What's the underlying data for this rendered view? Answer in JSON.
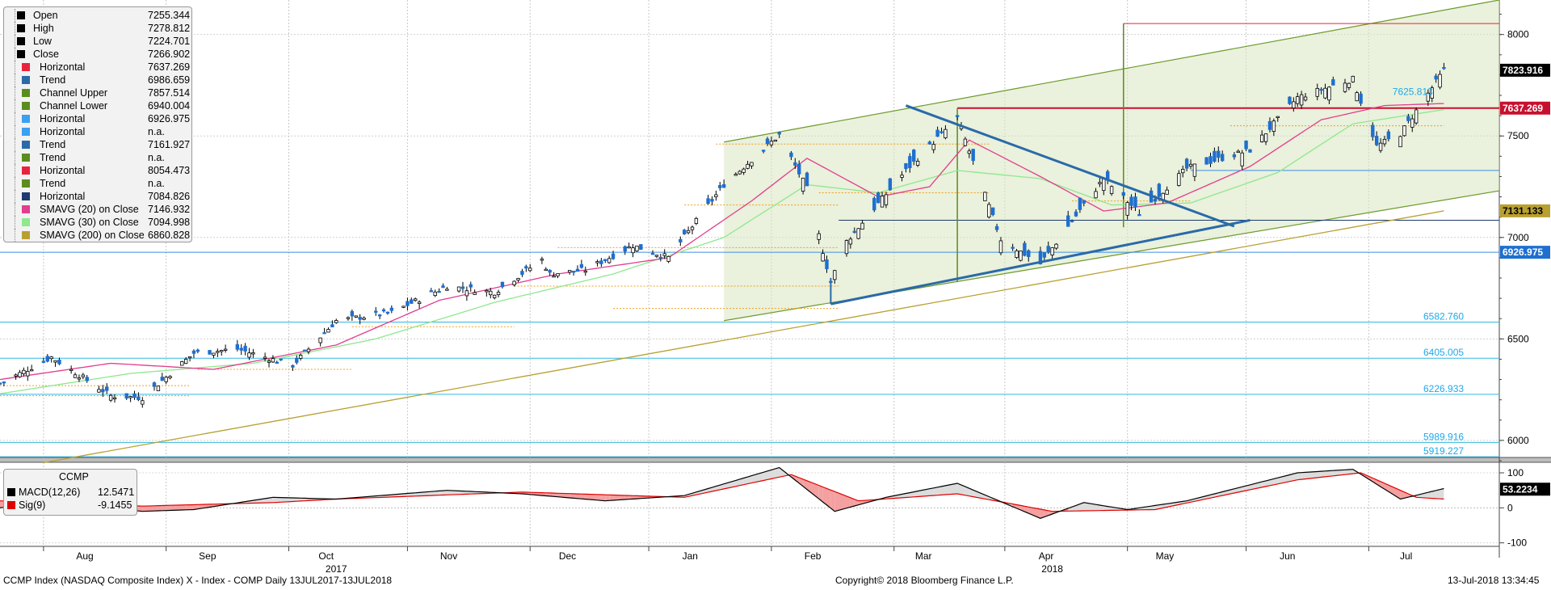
{
  "footer": {
    "left": "CCMP Index (NASDAQ Composite Index) X - Index - COMP  Daily 13JUL2017-13JUL2018",
    "center": "Copyright© 2018 Bloomberg Finance L.P.",
    "right": "13-Jul-2018 13:34:45"
  },
  "legend": [
    {
      "label": "Open",
      "value": "7255.344",
      "color": "#000000"
    },
    {
      "label": "High",
      "value": "7278.812",
      "color": "#000000"
    },
    {
      "label": "Low",
      "value": "7224.701",
      "color": "#000000"
    },
    {
      "label": "Close",
      "value": "7266.902",
      "color": "#000000"
    },
    {
      "label": "Horizontal",
      "value": "7637.269",
      "color": "#e8233c"
    },
    {
      "label": "Trend",
      "value": "6986.659",
      "color": "#2a6aa8"
    },
    {
      "label": "Channel Upper",
      "value": "7857.514",
      "color": "#5b8c1e"
    },
    {
      "label": "Channel Lower",
      "value": "6940.004",
      "color": "#5b8c1e"
    },
    {
      "label": "Horizontal",
      "value": "6926.975",
      "color": "#3aa0f0"
    },
    {
      "label": "Horizontal",
      "value": "n.a.",
      "color": "#3aa0f0"
    },
    {
      "label": "Trend",
      "value": "7161.927",
      "color": "#2a6aa8"
    },
    {
      "label": "Trend",
      "value": "n.a.",
      "color": "#5b8c1e"
    },
    {
      "label": "Horizontal",
      "value": "8054.473",
      "color": "#e8233c"
    },
    {
      "label": "Trend",
      "value": "n.a.",
      "color": "#5b8c1e"
    },
    {
      "label": "Horizontal",
      "value": "7084.826",
      "color": "#1e3a6e"
    },
    {
      "label": "SMAVG (20) on Close",
      "value": "7146.932",
      "color": "#e23d8e"
    },
    {
      "label": "SMAVG (30) on Close",
      "value": "7094.998",
      "color": "#8ee88e"
    },
    {
      "label": "SMAVG (200) on Close",
      "value": "6860.828",
      "color": "#b8a030"
    }
  ],
  "macd_legend": {
    "title": "CCMP",
    "rows": [
      {
        "label": "MACD(12,26)",
        "value": "12.5471",
        "color": "#000000"
      },
      {
        "label": "Sig(9)",
        "value": "-9.1455",
        "color": "#e00000"
      }
    ]
  },
  "chart_data": {
    "type": "candlestick",
    "price_axis": {
      "min": 5900,
      "max": 8170,
      "ticks": [
        "6000",
        "6500",
        "7000",
        "7500",
        "8000"
      ]
    },
    "macd_axis": {
      "min": -110,
      "max": 130,
      "ticks": [
        "100",
        "0",
        "-100"
      ]
    },
    "x_axis": {
      "months": [
        "Aug",
        "Sep",
        "Oct",
        "Nov",
        "Dec",
        "Jan",
        "Feb",
        "Mar",
        "Apr",
        "May",
        "Jun",
        "Jul"
      ],
      "years": [
        "2017",
        "2018"
      ]
    },
    "right_labels": [
      {
        "value": 7823.916,
        "text": "7823.916",
        "bg": "#000000",
        "fg": "#ffffff"
      },
      {
        "value": 7637.269,
        "text": "7637.269",
        "bg": "#c8102e",
        "fg": "#ffffff"
      },
      {
        "value": 7131.133,
        "text": "7131.133",
        "bg": "#b8a030",
        "fg": "#000000"
      },
      {
        "value": 6926.975,
        "text": "6926.975",
        "bg": "#1e6fd0",
        "fg": "#ffffff"
      },
      {
        "value": 53.2234,
        "text": "53.2234",
        "bg": "#000000",
        "fg": "#ffffff",
        "pane": "macd"
      }
    ],
    "horizontal_levels": [
      {
        "value": 6582.76,
        "text": "6582.760"
      },
      {
        "value": 6405.005,
        "text": "6405.005"
      },
      {
        "value": 6226.933,
        "text": "6226.933"
      },
      {
        "value": 5989.916,
        "text": "5989.916"
      },
      {
        "value": 5919.227,
        "text": "5919.227"
      }
    ],
    "inline_label": "7625.813",
    "ohlc_anchor": [
      [
        "2017-07-13",
        6280
      ],
      [
        "2017-07-26",
        6410
      ],
      [
        "2017-08-10",
        6220
      ],
      [
        "2017-08-18",
        6210
      ],
      [
        "2017-08-31",
        6430
      ],
      [
        "2017-09-11",
        6450
      ],
      [
        "2017-09-25",
        6370
      ],
      [
        "2017-10-06",
        6590
      ],
      [
        "2017-10-20",
        6630
      ],
      [
        "2017-11-03",
        6760
      ],
      [
        "2017-11-15",
        6730
      ],
      [
        "2017-11-27",
        6890
      ],
      [
        "2017-11-29",
        6820
      ],
      [
        "2017-12-08",
        6840
      ],
      [
        "2017-12-20",
        6960
      ],
      [
        "2017-12-29",
        6900
      ],
      [
        "2018-01-12",
        7260
      ],
      [
        "2018-01-26",
        7505
      ],
      [
        "2018-02-02",
        7240
      ],
      [
        "2018-02-08",
        6780
      ],
      [
        "2018-02-12",
        6980
      ],
      [
        "2018-02-27",
        7330
      ],
      [
        "2018-03-12",
        7590
      ],
      [
        "2018-03-23",
        6990
      ],
      [
        "2018-04-02",
        6870
      ],
      [
        "2018-04-18",
        7290
      ],
      [
        "2018-04-27",
        7120
      ],
      [
        "2018-05-09",
        7340
      ],
      [
        "2018-05-25",
        7430
      ],
      [
        "2018-06-06",
        7690
      ],
      [
        "2018-06-20",
        7780
      ],
      [
        "2018-06-26",
        7450
      ],
      [
        "2018-07-02",
        7510
      ],
      [
        "2018-07-13",
        7823
      ]
    ],
    "sma20_anchor": [
      [
        "2017-07-13",
        6300
      ],
      [
        "2017-08-10",
        6380
      ],
      [
        "2017-09-05",
        6350
      ],
      [
        "2017-10-06",
        6470
      ],
      [
        "2017-11-01",
        6690
      ],
      [
        "2017-12-01",
        6820
      ],
      [
        "2017-12-29",
        6900
      ],
      [
        "2018-01-19",
        7180
      ],
      [
        "2018-02-02",
        7390
      ],
      [
        "2018-02-20",
        7200
      ],
      [
        "2018-03-05",
        7250
      ],
      [
        "2018-03-15",
        7480
      ],
      [
        "2018-04-02",
        7300
      ],
      [
        "2018-04-18",
        7130
      ],
      [
        "2018-05-04",
        7170
      ],
      [
        "2018-05-25",
        7350
      ],
      [
        "2018-06-12",
        7580
      ],
      [
        "2018-06-28",
        7650
      ],
      [
        "2018-07-13",
        7660
      ]
    ],
    "sma30_anchor": [
      [
        "2017-07-13",
        6230
      ],
      [
        "2017-08-15",
        6330
      ],
      [
        "2017-09-15",
        6380
      ],
      [
        "2017-10-16",
        6500
      ],
      [
        "2017-11-15",
        6680
      ],
      [
        "2017-12-15",
        6820
      ],
      [
        "2018-01-12",
        7000
      ],
      [
        "2018-02-02",
        7260
      ],
      [
        "2018-02-20",
        7220
      ],
      [
        "2018-03-12",
        7330
      ],
      [
        "2018-04-02",
        7290
      ],
      [
        "2018-04-20",
        7160
      ],
      [
        "2018-05-10",
        7170
      ],
      [
        "2018-06-01",
        7320
      ],
      [
        "2018-06-20",
        7560
      ],
      [
        "2018-07-13",
        7630
      ]
    ],
    "sma200_anchor": [
      [
        "2017-07-24",
        5890
      ],
      [
        "2018-07-13",
        7131
      ]
    ],
    "macd_anchor": [
      [
        "2017-07-13",
        0
      ],
      [
        "2017-07-26",
        15
      ],
      [
        "2017-08-18",
        -10
      ],
      [
        "2017-08-31",
        -5
      ],
      [
        "2017-09-20",
        30
      ],
      [
        "2017-10-06",
        25
      ],
      [
        "2017-11-03",
        50
      ],
      [
        "2017-11-22",
        40
      ],
      [
        "2017-12-13",
        20
      ],
      [
        "2018-01-02",
        35
      ],
      [
        "2018-01-26",
        115
      ],
      [
        "2018-02-09",
        -10
      ],
      [
        "2018-02-22",
        30
      ],
      [
        "2018-03-12",
        70
      ],
      [
        "2018-04-02",
        -30
      ],
      [
        "2018-04-13",
        15
      ],
      [
        "2018-04-24",
        -5
      ],
      [
        "2018-05-09",
        20
      ],
      [
        "2018-06-06",
        100
      ],
      [
        "2018-06-20",
        110
      ],
      [
        "2018-07-02",
        25
      ],
      [
        "2018-07-13",
        55
      ]
    ],
    "signal_anchor": [
      [
        "2017-07-13",
        20
      ],
      [
        "2017-08-18",
        5
      ],
      [
        "2017-09-20",
        15
      ],
      [
        "2017-10-06",
        25
      ],
      [
        "2017-11-22",
        45
      ],
      [
        "2018-01-02",
        30
      ],
      [
        "2018-01-29",
        95
      ],
      [
        "2018-02-15",
        20
      ],
      [
        "2018-03-12",
        40
      ],
      [
        "2018-04-05",
        -10
      ],
      [
        "2018-05-01",
        -5
      ],
      [
        "2018-06-06",
        80
      ],
      [
        "2018-06-22",
        100
      ],
      [
        "2018-07-06",
        30
      ],
      [
        "2018-07-13",
        25
      ]
    ]
  }
}
